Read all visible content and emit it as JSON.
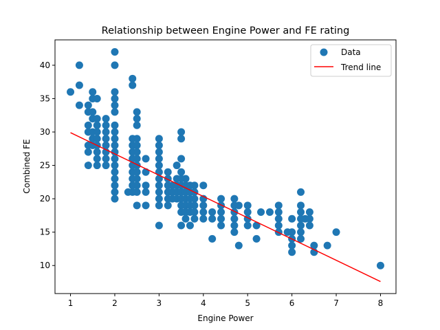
{
  "chart_data": {
    "type": "scatter",
    "title": "Relationship between Engine Power and FE rating",
    "xlabel": "Engine Power",
    "ylabel": "Combined FE",
    "xlim": [
      0.65,
      8.35
    ],
    "ylim": [
      5.8,
      43.8
    ],
    "xticks": [
      "1",
      "2",
      "3",
      "4",
      "5",
      "6",
      "7",
      "8"
    ],
    "yticks": [
      "10",
      "15",
      "20",
      "25",
      "30",
      "35",
      "40"
    ],
    "grid": false,
    "legend": "top-right",
    "colors": {
      "points": "#1f77b4",
      "trend": "#ff0000"
    },
    "series": [
      {
        "name": "Data",
        "type": "scatter",
        "points": [
          [
            1.0,
            36
          ],
          [
            1.2,
            40
          ],
          [
            1.2,
            37
          ],
          [
            1.2,
            34
          ],
          [
            1.4,
            34
          ],
          [
            1.4,
            33
          ],
          [
            1.4,
            31
          ],
          [
            1.4,
            30
          ],
          [
            1.4,
            28
          ],
          [
            1.4,
            27
          ],
          [
            1.4,
            25
          ],
          [
            1.5,
            36
          ],
          [
            1.5,
            35
          ],
          [
            1.5,
            33
          ],
          [
            1.5,
            32
          ],
          [
            1.5,
            30
          ],
          [
            1.5,
            29
          ],
          [
            1.5,
            28
          ],
          [
            1.6,
            35
          ],
          [
            1.6,
            32
          ],
          [
            1.6,
            31
          ],
          [
            1.6,
            30
          ],
          [
            1.6,
            29
          ],
          [
            1.6,
            28
          ],
          [
            1.6,
            27
          ],
          [
            1.6,
            26
          ],
          [
            1.6,
            25
          ],
          [
            1.8,
            32
          ],
          [
            1.8,
            31
          ],
          [
            1.8,
            30
          ],
          [
            1.8,
            29
          ],
          [
            1.8,
            28
          ],
          [
            1.8,
            27
          ],
          [
            1.8,
            26
          ],
          [
            1.8,
            25
          ],
          [
            2.0,
            42
          ],
          [
            2.0,
            40
          ],
          [
            2.0,
            36
          ],
          [
            2.0,
            35
          ],
          [
            2.0,
            34
          ],
          [
            2.0,
            33
          ],
          [
            2.0,
            31
          ],
          [
            2.0,
            30
          ],
          [
            2.0,
            29
          ],
          [
            2.0,
            28
          ],
          [
            2.0,
            27
          ],
          [
            2.0,
            26
          ],
          [
            2.0,
            25
          ],
          [
            2.0,
            24
          ],
          [
            2.0,
            23
          ],
          [
            2.0,
            22
          ],
          [
            2.0,
            21
          ],
          [
            2.0,
            20
          ],
          [
            2.3,
            21
          ],
          [
            2.4,
            38
          ],
          [
            2.4,
            37
          ],
          [
            2.4,
            29
          ],
          [
            2.4,
            28
          ],
          [
            2.4,
            27
          ],
          [
            2.4,
            26
          ],
          [
            2.4,
            25
          ],
          [
            2.4,
            24
          ],
          [
            2.4,
            23
          ],
          [
            2.4,
            22
          ],
          [
            2.4,
            21
          ],
          [
            2.5,
            33
          ],
          [
            2.5,
            32
          ],
          [
            2.5,
            31
          ],
          [
            2.5,
            29
          ],
          [
            2.5,
            28
          ],
          [
            2.5,
            27
          ],
          [
            2.5,
            26
          ],
          [
            2.5,
            25
          ],
          [
            2.5,
            24
          ],
          [
            2.5,
            23
          ],
          [
            2.5,
            22
          ],
          [
            2.5,
            21
          ],
          [
            2.5,
            19
          ],
          [
            2.7,
            26
          ],
          [
            2.7,
            24
          ],
          [
            2.7,
            22
          ],
          [
            2.7,
            21
          ],
          [
            2.7,
            19
          ],
          [
            3.0,
            29
          ],
          [
            3.0,
            28
          ],
          [
            3.0,
            27
          ],
          [
            3.0,
            26
          ],
          [
            3.0,
            25
          ],
          [
            3.0,
            24
          ],
          [
            3.0,
            23
          ],
          [
            3.0,
            22
          ],
          [
            3.0,
            21
          ],
          [
            3.0,
            20
          ],
          [
            3.0,
            19
          ],
          [
            3.0,
            16
          ],
          [
            3.2,
            24
          ],
          [
            3.2,
            23
          ],
          [
            3.2,
            22
          ],
          [
            3.2,
            21
          ],
          [
            3.2,
            20
          ],
          [
            3.2,
            19
          ],
          [
            3.3,
            22
          ],
          [
            3.3,
            21
          ],
          [
            3.3,
            20
          ],
          [
            3.4,
            25
          ],
          [
            3.4,
            23
          ],
          [
            3.4,
            22
          ],
          [
            3.4,
            21
          ],
          [
            3.4,
            20
          ],
          [
            3.5,
            30
          ],
          [
            3.5,
            29
          ],
          [
            3.5,
            26
          ],
          [
            3.5,
            24
          ],
          [
            3.5,
            23
          ],
          [
            3.5,
            22
          ],
          [
            3.5,
            21
          ],
          [
            3.5,
            20
          ],
          [
            3.5,
            19
          ],
          [
            3.5,
            18
          ],
          [
            3.5,
            16
          ],
          [
            3.6,
            23
          ],
          [
            3.6,
            22
          ],
          [
            3.6,
            21
          ],
          [
            3.6,
            20
          ],
          [
            3.6,
            19
          ],
          [
            3.6,
            18
          ],
          [
            3.6,
            17
          ],
          [
            3.7,
            22
          ],
          [
            3.7,
            21
          ],
          [
            3.7,
            20
          ],
          [
            3.7,
            19
          ],
          [
            3.7,
            18
          ],
          [
            3.7,
            16
          ],
          [
            3.8,
            22
          ],
          [
            3.8,
            21
          ],
          [
            3.8,
            20
          ],
          [
            3.8,
            19
          ],
          [
            3.8,
            18
          ],
          [
            3.8,
            17
          ],
          [
            4.0,
            22
          ],
          [
            4.0,
            20
          ],
          [
            4.0,
            19
          ],
          [
            4.0,
            18
          ],
          [
            4.0,
            17
          ],
          [
            4.2,
            18
          ],
          [
            4.2,
            17
          ],
          [
            4.2,
            14
          ],
          [
            4.4,
            20
          ],
          [
            4.4,
            19
          ],
          [
            4.4,
            18
          ],
          [
            4.4,
            17
          ],
          [
            4.4,
            16
          ],
          [
            4.7,
            20
          ],
          [
            4.7,
            19
          ],
          [
            4.7,
            18
          ],
          [
            4.7,
            17
          ],
          [
            4.7,
            16
          ],
          [
            4.7,
            15
          ],
          [
            4.8,
            19
          ],
          [
            4.8,
            13
          ],
          [
            5.0,
            19
          ],
          [
            5.0,
            18
          ],
          [
            5.0,
            17
          ],
          [
            5.0,
            16
          ],
          [
            5.2,
            16
          ],
          [
            5.2,
            14
          ],
          [
            5.3,
            18
          ],
          [
            5.5,
            18
          ],
          [
            5.7,
            19
          ],
          [
            5.7,
            18
          ],
          [
            5.7,
            17
          ],
          [
            5.7,
            16
          ],
          [
            5.7,
            15
          ],
          [
            5.9,
            15
          ],
          [
            6.0,
            17
          ],
          [
            6.0,
            15
          ],
          [
            6.0,
            14
          ],
          [
            6.0,
            13
          ],
          [
            6.0,
            12
          ],
          [
            6.2,
            21
          ],
          [
            6.2,
            19
          ],
          [
            6.2,
            18
          ],
          [
            6.2,
            17
          ],
          [
            6.2,
            16
          ],
          [
            6.2,
            15
          ],
          [
            6.2,
            14
          ],
          [
            6.3,
            17
          ],
          [
            6.4,
            18
          ],
          [
            6.4,
            17
          ],
          [
            6.4,
            16
          ],
          [
            6.5,
            13
          ],
          [
            6.5,
            12
          ],
          [
            6.8,
            13
          ],
          [
            7.0,
            15
          ],
          [
            8.0,
            10
          ]
        ]
      },
      {
        "name": "Trend line",
        "type": "line",
        "points": [
          [
            1.0,
            29.9
          ],
          [
            8.0,
            7.6
          ]
        ]
      }
    ]
  }
}
